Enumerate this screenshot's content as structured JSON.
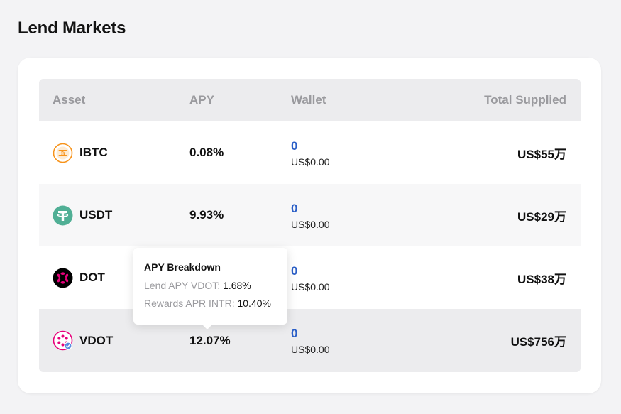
{
  "page": {
    "title": "Lend Markets"
  },
  "table": {
    "columns": {
      "asset": "Asset",
      "apy": "APY",
      "wallet": "Wallet",
      "total": "Total Supplied"
    },
    "rows": [
      {
        "asset": "IBTC",
        "icon": "ibtc-icon",
        "icon_color": "#f7931a",
        "apy": "0.08%",
        "wallet_amount": "0",
        "wallet_usd": "US$0.00",
        "total_supplied": "US$55万"
      },
      {
        "asset": "USDT",
        "icon": "tether-icon",
        "icon_color": "#50af95",
        "apy": "9.93%",
        "wallet_amount": "0",
        "wallet_usd": "US$0.00",
        "total_supplied": "US$29万"
      },
      {
        "asset": "DOT",
        "icon": "polkadot-icon",
        "icon_color": "#e6007a",
        "apy": "",
        "wallet_amount": "0",
        "wallet_usd": "US$0.00",
        "total_supplied": "US$38万"
      },
      {
        "asset": "VDOT",
        "icon": "vdot-icon",
        "icon_color": "#e6007a",
        "apy": "12.07%",
        "wallet_amount": "0",
        "wallet_usd": "US$0.00",
        "total_supplied": "US$756万"
      }
    ]
  },
  "tooltip": {
    "title": "APY Breakdown",
    "lend_label": "Lend APY VDOT:",
    "lend_value": "1.68%",
    "rewards_label": "Rewards APR INTR:",
    "rewards_value": "10.40%"
  },
  "colors": {
    "accent": "#2b5fc7",
    "header_bg": "#ececee",
    "page_bg": "#f3f3f5"
  }
}
